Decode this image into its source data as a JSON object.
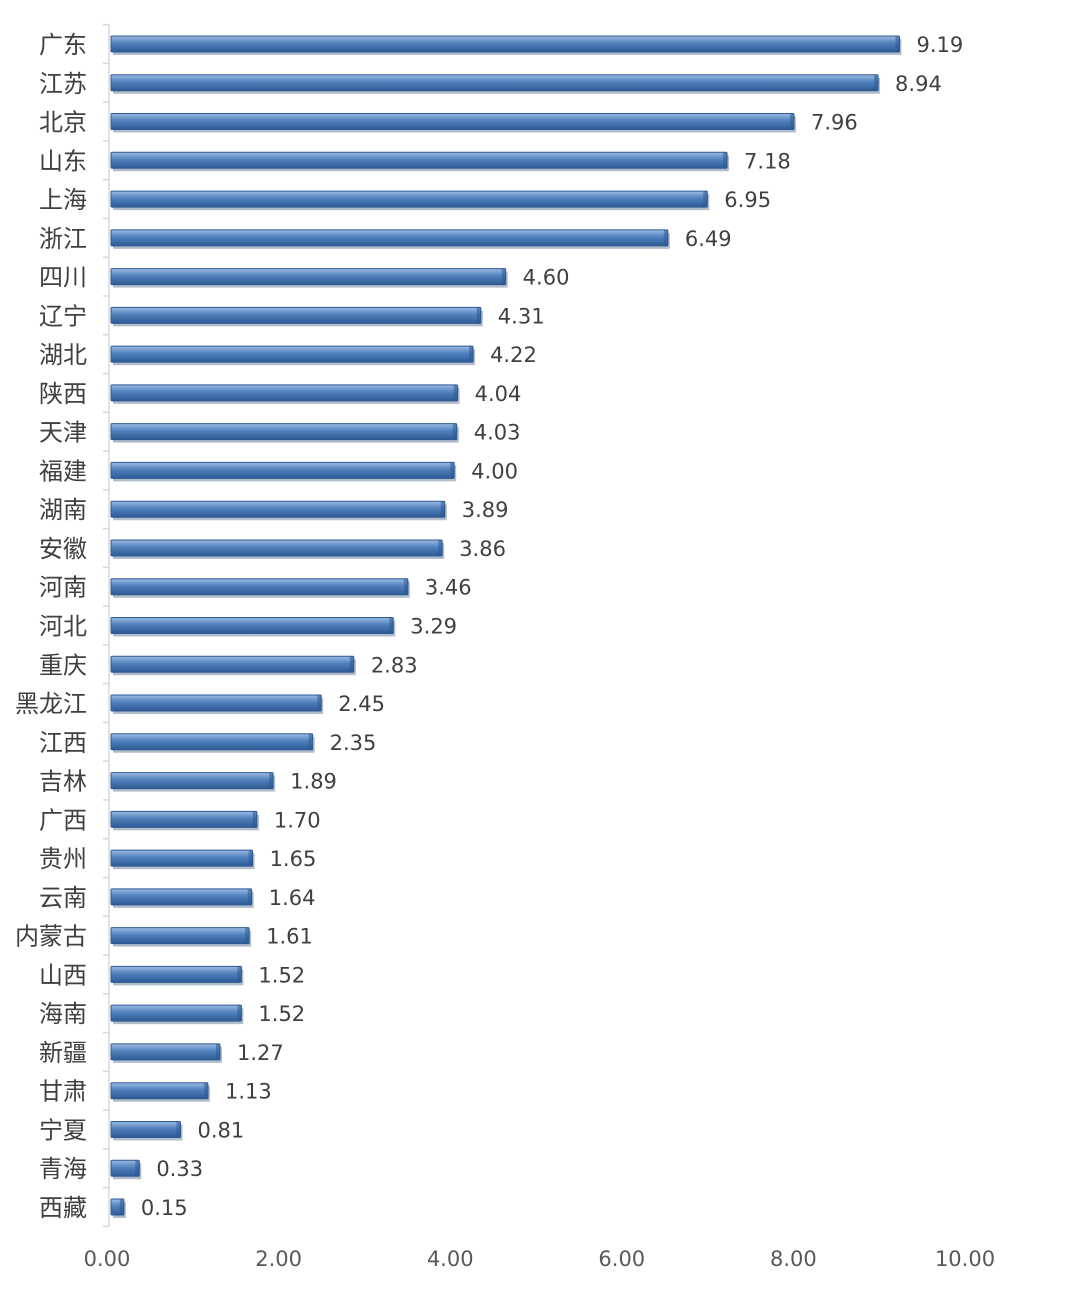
{
  "chart_data": {
    "type": "bar",
    "orientation": "horizontal",
    "categories": [
      "广东",
      "江苏",
      "北京",
      "山东",
      "上海",
      "浙江",
      "四川",
      "辽宁",
      "湖北",
      "陕西",
      "天津",
      "福建",
      "湖南",
      "安徽",
      "河南",
      "河北",
      "重庆",
      "黑龙江",
      "江西",
      "吉林",
      "广西",
      "贵州",
      "云南",
      "内蒙古",
      "山西",
      "海南",
      "新疆",
      "甘肃",
      "宁夏",
      "青海",
      "西藏"
    ],
    "values": [
      9.19,
      8.94,
      7.96,
      7.18,
      6.95,
      6.49,
      4.6,
      4.31,
      4.22,
      4.04,
      4.03,
      4.0,
      3.89,
      3.86,
      3.46,
      3.29,
      2.83,
      2.45,
      2.35,
      1.89,
      1.7,
      1.65,
      1.64,
      1.61,
      1.52,
      1.52,
      1.27,
      1.13,
      0.81,
      0.33,
      0.15
    ],
    "value_labels": [
      "9.19",
      "8.94",
      "7.96",
      "7.18",
      "6.95",
      "6.49",
      "4.60",
      "4.31",
      "4.22",
      "4.04",
      "4.03",
      "4.00",
      "3.89",
      "3.86",
      "3.46",
      "3.29",
      "2.83",
      "2.45",
      "2.35",
      "1.89",
      "1.70",
      "1.65",
      "1.64",
      "1.61",
      "1.52",
      "1.52",
      "1.27",
      "1.13",
      "0.81",
      "0.33",
      "0.15"
    ],
    "xlim": [
      0,
      10
    ],
    "x_ticks": [
      "0.00",
      "2.00",
      "4.00",
      "6.00",
      "8.00",
      "10.00"
    ],
    "x_tick_values": [
      0,
      2,
      4,
      6,
      8,
      10
    ],
    "grid": false,
    "legend": "none",
    "title": "",
    "xlabel": "",
    "ylabel": "",
    "colors": {
      "bar_main": "#4F81BD",
      "bar_light": "#9DBBE3",
      "bar_dark": "#2E5A94",
      "label_text": "#404040",
      "axis_line": "#D9D9D9"
    }
  }
}
